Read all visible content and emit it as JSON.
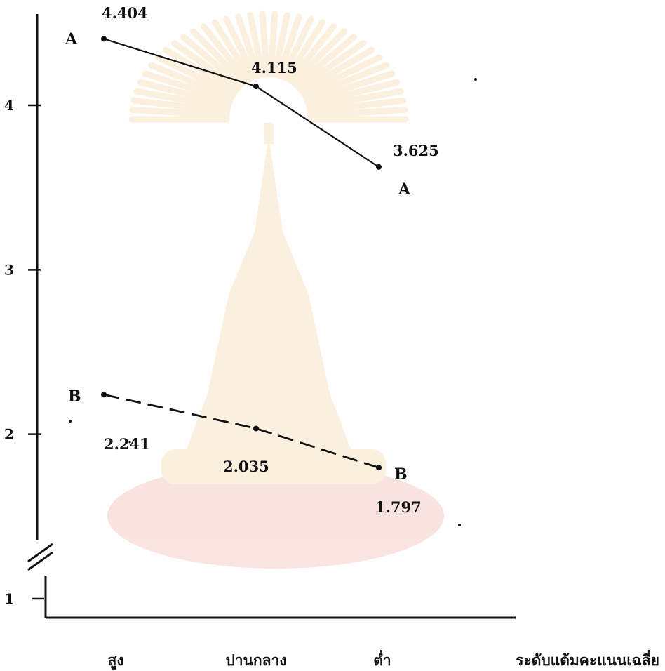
{
  "chart_data": {
    "type": "line",
    "title": "",
    "xlabel": "ระดับแต้มคะแนนเฉลี่ย",
    "ylabel": "",
    "categories": [
      "สูง",
      "ปานกลาง",
      "ต่ำ"
    ],
    "y_ticks": [
      "1",
      "2",
      "3",
      "4"
    ],
    "ylim": [
      0.8,
      4.6
    ],
    "y_axis_break": true,
    "grid": false,
    "series": [
      {
        "label": "A",
        "values": [
          4.404,
          4.115,
          3.625
        ],
        "value_labels": [
          "4.404",
          "4.115",
          "3.625"
        ],
        "line_style": "solid",
        "color": "#111111"
      },
      {
        "label": "B",
        "values": [
          2.241,
          2.035,
          1.797
        ],
        "value_labels": [
          "2.241",
          "2.035",
          "1.797"
        ],
        "line_style": "dashed",
        "color": "#111111"
      }
    ]
  },
  "watermark": {
    "description_icon": "university-emblem-watermark",
    "color": "#e8a23a"
  }
}
